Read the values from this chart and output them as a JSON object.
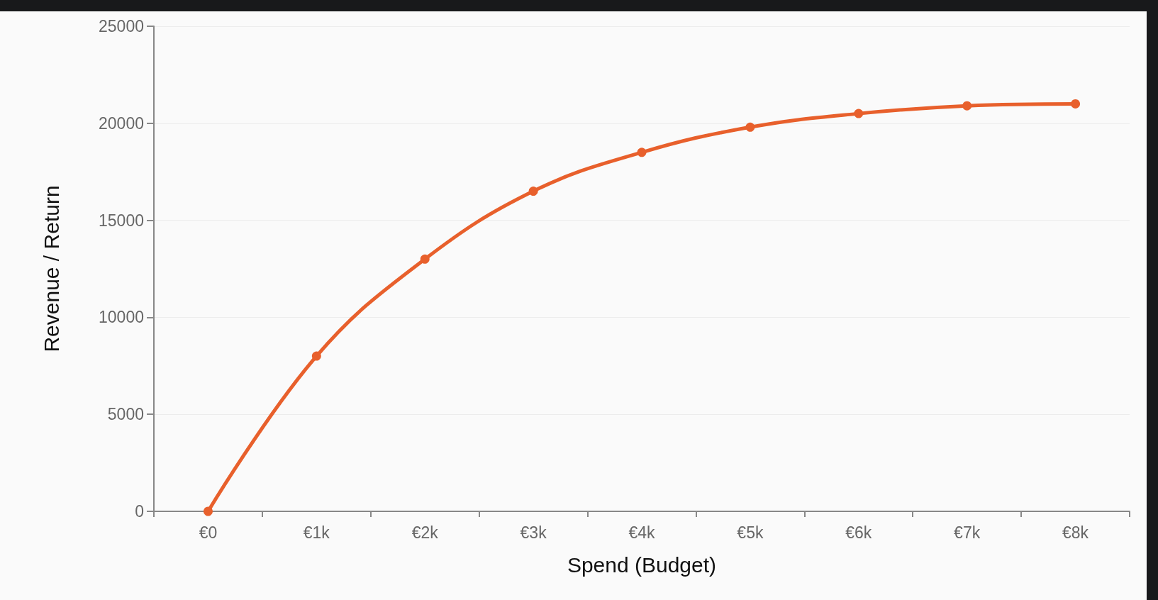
{
  "chart_data": {
    "type": "line",
    "xlabel": "Spend (Budget)",
    "ylabel": "Revenue / Return",
    "categories": [
      "€0",
      "€1k",
      "€2k",
      "€3k",
      "€4k",
      "€5k",
      "€6k",
      "€7k",
      "€8k"
    ],
    "series": [
      {
        "color": "#e8602c",
        "values": [
          0,
          8000,
          13000,
          16500,
          18500,
          19800,
          20500,
          20900,
          21000
        ]
      }
    ],
    "ylim": [
      0,
      25000
    ],
    "yticks": [
      0,
      5000,
      10000,
      15000,
      20000,
      25000
    ],
    "grid": "y",
    "marker": "circle",
    "line_style": "solid"
  }
}
